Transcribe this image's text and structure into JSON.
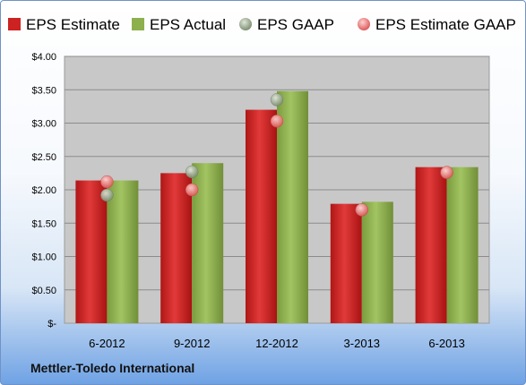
{
  "company": "Mettler-Toledo International",
  "chart_data": {
    "type": "bar",
    "categories": [
      "6-2012",
      "9-2012",
      "12-2012",
      "3-2013",
      "6-2013"
    ],
    "series": [
      {
        "name": "EPS Estimate",
        "kind": "bar",
        "color": "#cc2222",
        "values": [
          2.14,
          2.25,
          3.2,
          1.79,
          2.34
        ]
      },
      {
        "name": "EPS Actual",
        "kind": "bar",
        "color": "#8db04d",
        "values": [
          2.14,
          2.4,
          3.48,
          1.82,
          2.34
        ]
      },
      {
        "name": "EPS GAAP",
        "kind": "point",
        "color": "#9aaa90",
        "values": [
          1.92,
          2.27,
          3.35,
          1.7,
          2.26
        ]
      },
      {
        "name": "EPS Estimate GAAP",
        "kind": "point",
        "color": "#ee8080",
        "values": [
          2.12,
          2.0,
          3.03,
          1.7,
          2.26
        ]
      }
    ],
    "yticks": [
      "$-",
      "$0.50",
      "$1.00",
      "$1.50",
      "$2.00",
      "$2.50",
      "$3.00",
      "$3.50",
      "$4.00"
    ],
    "ylim": [
      0,
      4
    ],
    "grid": true,
    "legend_position": "top"
  }
}
